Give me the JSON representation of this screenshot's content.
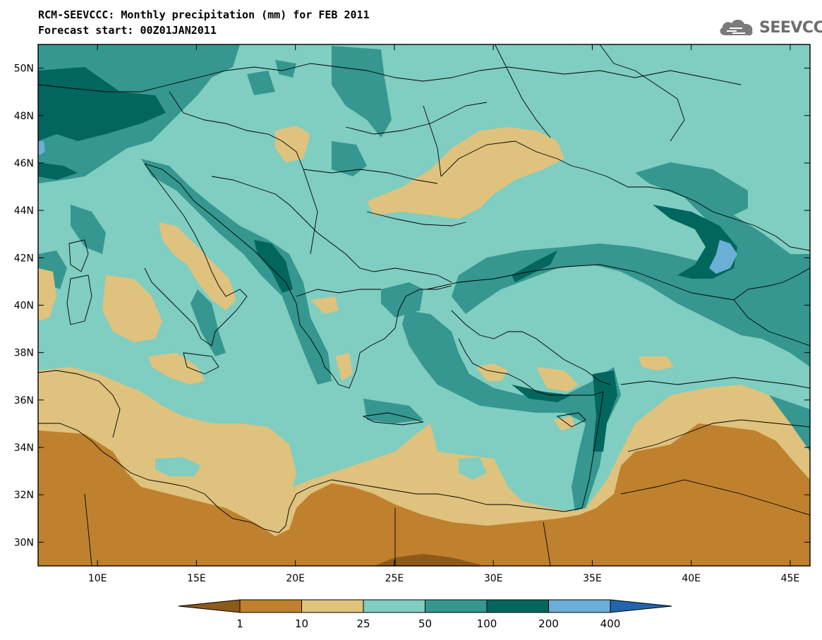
{
  "title_line1": "RCM-SEEVCCC: Monthly precipitation (mm) for FEB 2011",
  "title_line2": "Forecast start: 00Z01JAN2011",
  "logo_text": "SEEVCCC",
  "map": {
    "lon_range": [
      7,
      46
    ],
    "lat_range": [
      29,
      51
    ],
    "x_ticks": [
      {
        "value": 10,
        "label": "10E"
      },
      {
        "value": 15,
        "label": "15E"
      },
      {
        "value": 20,
        "label": "20E"
      },
      {
        "value": 25,
        "label": "25E"
      },
      {
        "value": 30,
        "label": "30E"
      },
      {
        "value": 35,
        "label": "35E"
      },
      {
        "value": 40,
        "label": "40E"
      },
      {
        "value": 45,
        "label": "45E"
      }
    ],
    "y_ticks": [
      {
        "value": 30,
        "label": "30N"
      },
      {
        "value": 32,
        "label": "32N"
      },
      {
        "value": 34,
        "label": "34N"
      },
      {
        "value": 36,
        "label": "36N"
      },
      {
        "value": 38,
        "label": "38N"
      },
      {
        "value": 40,
        "label": "40N"
      },
      {
        "value": 42,
        "label": "42N"
      },
      {
        "value": 44,
        "label": "44N"
      },
      {
        "value": 46,
        "label": "46N"
      },
      {
        "value": 48,
        "label": "48N"
      },
      {
        "value": 50,
        "label": "50N"
      }
    ]
  },
  "colorbar": {
    "boundaries": [
      "1",
      "10",
      "25",
      "50",
      "100",
      "200",
      "400"
    ],
    "colors": [
      "#8c5a19",
      "#bf812d",
      "#dfc27d",
      "#80cdc1",
      "#35978f",
      "#01665e",
      "#6baed6",
      "#2166ac"
    ]
  }
}
